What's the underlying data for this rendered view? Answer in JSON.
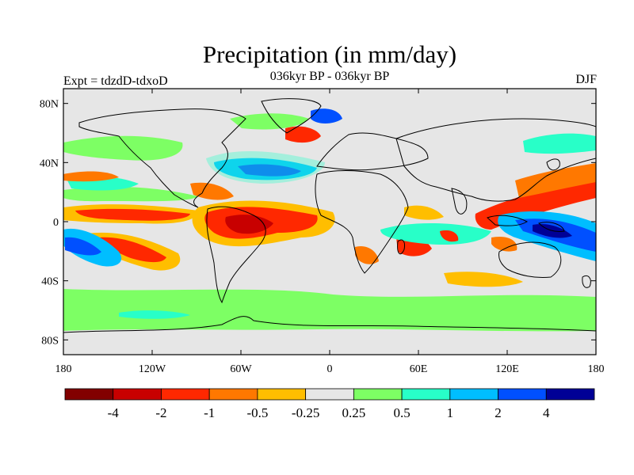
{
  "title": "Precipitation (in mm/day)",
  "subtitle": "036kyr BP - 036kyr BP",
  "left_label": "Expt = tdzdD-tdxoD",
  "right_label": "DJF",
  "chart_data": {
    "type": "heatmap",
    "variable": "Precipitation difference",
    "units": "mm/day",
    "season": "DJF",
    "x_axis": {
      "range": [
        -180,
        180
      ],
      "ticks": [
        -180,
        -120,
        -60,
        0,
        60,
        120,
        180
      ],
      "tick_labels": [
        "180",
        "120W",
        "60W",
        "0",
        "60E",
        "120E",
        "180"
      ]
    },
    "y_axis": {
      "range": [
        -90,
        90
      ],
      "ticks": [
        80,
        40,
        0,
        -40,
        -80
      ],
      "tick_labels": [
        "80N",
        "40N",
        "0",
        "40S",
        "80S"
      ]
    },
    "colorbar": {
      "levels": [
        "-4",
        "-2",
        "-1",
        "-0.5",
        "-0.25",
        "0.25",
        "0.5",
        "1",
        "2",
        "4"
      ],
      "colors": [
        "#820000",
        "#c80000",
        "#ff2800",
        "#ff7800",
        "#ffbe00",
        "#e6e6e6",
        "#7dff64",
        "#28ffc8",
        "#00beff",
        "#0050ff",
        "#000096"
      ]
    },
    "anomalies": [
      {
        "region": "tropical Atlantic / NE Brazil",
        "sign": "negative",
        "magnitude": "-1 to -4"
      },
      {
        "region": "subtropical South Pacific",
        "sign": "negative",
        "magnitude": "-0.5 to -2"
      },
      {
        "region": "South Pacific near 20S 160W",
        "sign": "positive",
        "magnitude": "1 to 2"
      },
      {
        "region": "North Atlantic 30-40N",
        "sign": "positive",
        "magnitude": "0.5 to 2"
      },
      {
        "region": "Iceland / Greenland",
        "sign": "positive",
        "magnitude": "2 to 4"
      },
      {
        "region": "Maritime Continent / West Pacific",
        "sign": "positive",
        "magnitude": "2 to 4"
      },
      {
        "region": "NW Pacific 20-40N",
        "sign": "negative",
        "magnitude": "-0.5 to -2"
      },
      {
        "region": "Southern Ocean 55-65S",
        "sign": "positive",
        "magnitude": "0.25 to 0.5"
      }
    ]
  }
}
